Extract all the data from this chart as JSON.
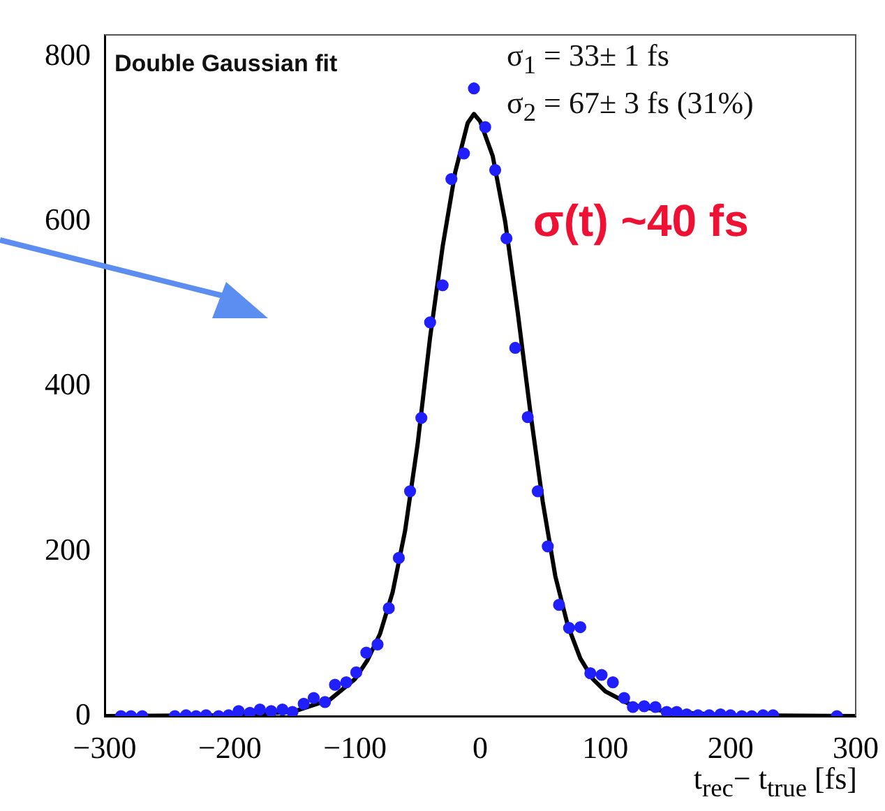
{
  "chart_data": {
    "type": "scatter",
    "xlabel": "t$_{rec}$− t$_{true}$ [fs]",
    "xlim": [
      -300,
      300
    ],
    "xticks": [
      -300,
      -200,
      -100,
      0,
      100,
      200,
      300
    ],
    "ylim": [
      0,
      827
    ],
    "yticks": [
      0,
      200,
      400,
      600,
      800
    ],
    "grid": false,
    "legend": false,
    "annotations": [
      "Double Gaussian fit",
      "σ$_{1}$ = 33± 1 fs",
      "σ$_{2}$ = 67± 3 fs (31%)",
      "σ(t) ~40 fs"
    ],
    "series": [
      {
        "type": "scatter",
        "color": "#1f1fff",
        "marker": "circle",
        "x": [
          -287,
          -279,
          -270,
          -244,
          -235,
          -227,
          -219,
          -209,
          -201,
          -193,
          -184,
          -176,
          -167,
          -158,
          -150,
          -141,
          -133,
          -124,
          -116,
          -107,
          -99,
          -91,
          -82,
          -73,
          -65,
          -56,
          -47,
          -40,
          -30,
          -23,
          -13,
          -5,
          4,
          12,
          21,
          28,
          38,
          46,
          54,
          63,
          71,
          80,
          88,
          97,
          106,
          115,
          122,
          131,
          140,
          149,
          157,
          165,
          174,
          183,
          192,
          200,
          209,
          217,
          226,
          234,
          285
        ],
        "values": [
          0,
          0,
          0,
          0,
          1,
          0,
          1,
          0,
          1,
          6,
          4,
          8,
          6,
          8,
          5,
          15,
          22,
          17,
          38,
          41,
          53,
          77,
          87,
          131,
          192,
          273,
          362,
          478,
          523,
          652,
          683,
          762,
          715,
          663,
          580,
          447,
          363,
          273,
          206,
          135,
          107,
          108,
          52,
          50,
          41,
          22,
          11,
          12,
          11,
          5,
          5,
          2,
          1,
          1,
          2,
          1,
          0,
          0,
          1,
          1,
          0
        ]
      },
      {
        "type": "line",
        "color": "#000000",
        "marker": "none",
        "x": [
          -300,
          -200,
          -150,
          -120,
          -100,
          -90,
          -80,
          -70,
          -60,
          -50,
          -40,
          -30,
          -20,
          -10,
          -5,
          0,
          10,
          20,
          30,
          40,
          50,
          60,
          70,
          80,
          90,
          100,
          120,
          150,
          200,
          300
        ],
        "values": [
          0,
          1,
          5,
          20,
          45,
          68,
          100,
          150,
          225,
          330,
          460,
          570,
          660,
          720,
          731,
          722,
          680,
          600,
          490,
          370,
          260,
          170,
          110,
          70,
          45,
          30,
          14,
          5,
          1,
          0
        ]
      }
    ]
  }
}
